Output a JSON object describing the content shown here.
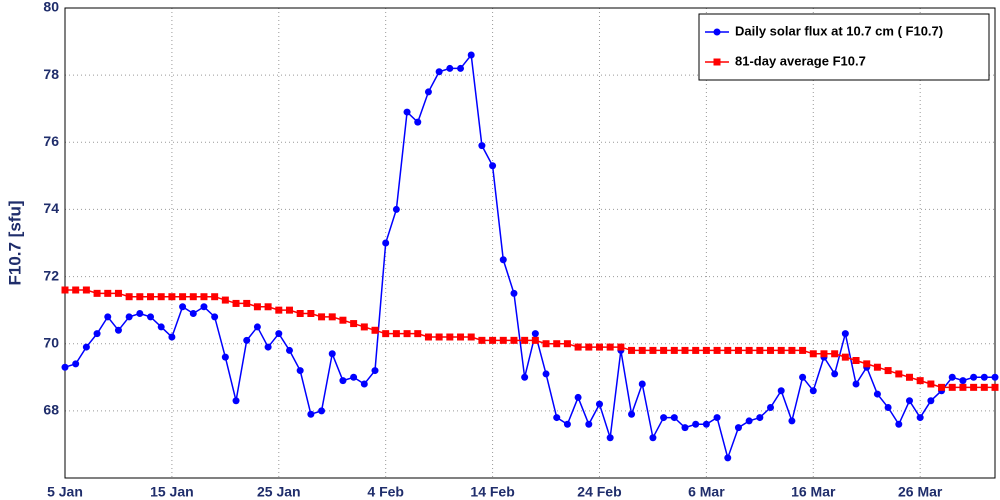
{
  "chart_data": {
    "type": "line",
    "y_label": "F10.7 [sfu]",
    "categories": [
      "5 Jan",
      null,
      null,
      null,
      null,
      null,
      null,
      null,
      null,
      null,
      "15 Jan",
      null,
      null,
      null,
      null,
      null,
      null,
      null,
      null,
      null,
      "25 Jan",
      null,
      null,
      null,
      null,
      null,
      null,
      null,
      null,
      null,
      "4 Feb",
      null,
      null,
      null,
      null,
      null,
      null,
      null,
      null,
      null,
      "14 Feb",
      null,
      null,
      null,
      null,
      null,
      null,
      null,
      null,
      null,
      "24 Feb",
      null,
      null,
      null,
      null,
      null,
      null,
      null,
      null,
      null,
      "6 Mar",
      null,
      null,
      null,
      null,
      null,
      null,
      null,
      null,
      null,
      "16 Mar",
      null,
      null,
      null,
      null,
      null,
      null,
      null,
      null,
      null,
      "26 Mar",
      null,
      null,
      null,
      null,
      null,
      null,
      null
    ],
    "series": [
      {
        "name": "Daily solar flux at 10.7 cm ( F10.7)",
        "color": "#0000ff",
        "marker": "circle",
        "values": [
          69.3,
          69.4,
          69.9,
          70.3,
          70.8,
          70.4,
          70.8,
          70.9,
          70.8,
          70.5,
          70.2,
          71.1,
          70.9,
          71.1,
          70.8,
          69.6,
          68.3,
          70.1,
          70.5,
          69.9,
          70.3,
          69.8,
          69.2,
          67.9,
          68.0,
          69.7,
          68.9,
          69.0,
          68.8,
          69.2,
          73.0,
          74.0,
          76.9,
          76.6,
          77.5,
          78.1,
          78.2,
          78.2,
          78.6,
          75.9,
          75.3,
          72.5,
          71.5,
          69.0,
          70.3,
          69.1,
          67.8,
          67.6,
          68.4,
          67.6,
          68.2,
          67.2,
          69.8,
          67.9,
          68.8,
          67.2,
          67.8,
          67.8,
          67.5,
          67.6,
          67.6,
          67.8,
          66.6,
          67.5,
          67.7,
          67.8,
          68.1,
          68.6,
          67.7,
          69.0,
          68.6,
          69.6,
          69.1,
          70.3,
          68.8,
          69.3,
          68.5,
          68.1,
          67.6,
          68.3,
          67.8,
          68.3,
          68.6,
          69.0,
          68.9,
          69.0,
          69.0,
          69.0
        ]
      },
      {
        "name": "81-day average F10.7",
        "color": "#ff0000",
        "marker": "square",
        "values": [
          71.6,
          71.6,
          71.6,
          71.5,
          71.5,
          71.5,
          71.4,
          71.4,
          71.4,
          71.4,
          71.4,
          71.4,
          71.4,
          71.4,
          71.4,
          71.3,
          71.2,
          71.2,
          71.1,
          71.1,
          71.0,
          71.0,
          70.9,
          70.9,
          70.8,
          70.8,
          70.7,
          70.6,
          70.5,
          70.4,
          70.3,
          70.3,
          70.3,
          70.3,
          70.2,
          70.2,
          70.2,
          70.2,
          70.2,
          70.1,
          70.1,
          70.1,
          70.1,
          70.1,
          70.1,
          70.0,
          70.0,
          70.0,
          69.9,
          69.9,
          69.9,
          69.9,
          69.9,
          69.8,
          69.8,
          69.8,
          69.8,
          69.8,
          69.8,
          69.8,
          69.8,
          69.8,
          69.8,
          69.8,
          69.8,
          69.8,
          69.8,
          69.8,
          69.8,
          69.8,
          69.7,
          69.7,
          69.7,
          69.6,
          69.5,
          69.4,
          69.3,
          69.2,
          69.1,
          69.0,
          68.9,
          68.8,
          68.7,
          68.7,
          68.7,
          68.7,
          68.7,
          68.7
        ]
      }
    ],
    "ylim": [
      66,
      80
    ],
    "yticks": [
      68,
      70,
      72,
      74,
      76,
      78,
      80
    ],
    "grid": true,
    "legend": "upper right"
  }
}
